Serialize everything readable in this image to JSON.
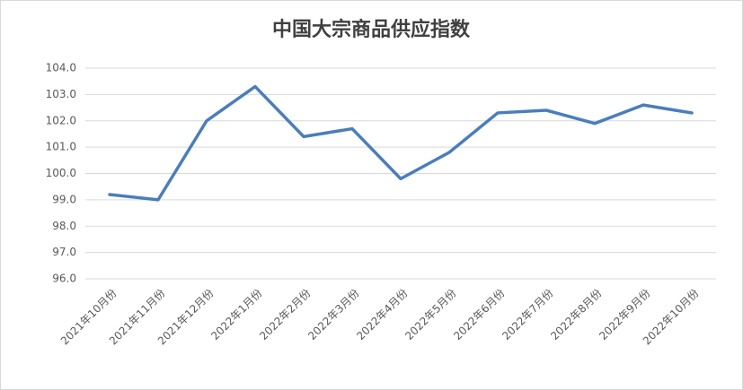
{
  "chart_data": {
    "type": "line",
    "title": "中国大宗商品供应指数",
    "categories": [
      "2021年10月份",
      "2021年11月份",
      "2021年12月份",
      "2022年1月份",
      "2022年2月份",
      "2022年3月份",
      "2022年4月份",
      "2022年5月份",
      "2022年6月份",
      "2022年7月份",
      "2022年8月份",
      "2022年9月份",
      "2022年10月份"
    ],
    "values": [
      99.2,
      99.0,
      102.0,
      103.3,
      101.4,
      101.7,
      99.8,
      100.8,
      102.3,
      102.4,
      101.9,
      102.6,
      102.3
    ],
    "color": "#4a7ebb",
    "ylim": [
      96,
      104
    ],
    "yticks": [
      {
        "value": 96,
        "label": "96.0"
      },
      {
        "value": 97,
        "label": "97.0"
      },
      {
        "value": 98,
        "label": "98.0"
      },
      {
        "value": 99,
        "label": "99.0"
      },
      {
        "value": 100,
        "label": "100.0"
      },
      {
        "value": 101,
        "label": "101.0"
      },
      {
        "value": 102,
        "label": "102.0"
      },
      {
        "value": 103,
        "label": "103.0"
      },
      {
        "value": 104,
        "label": "104.0"
      }
    ],
    "grid": true
  }
}
